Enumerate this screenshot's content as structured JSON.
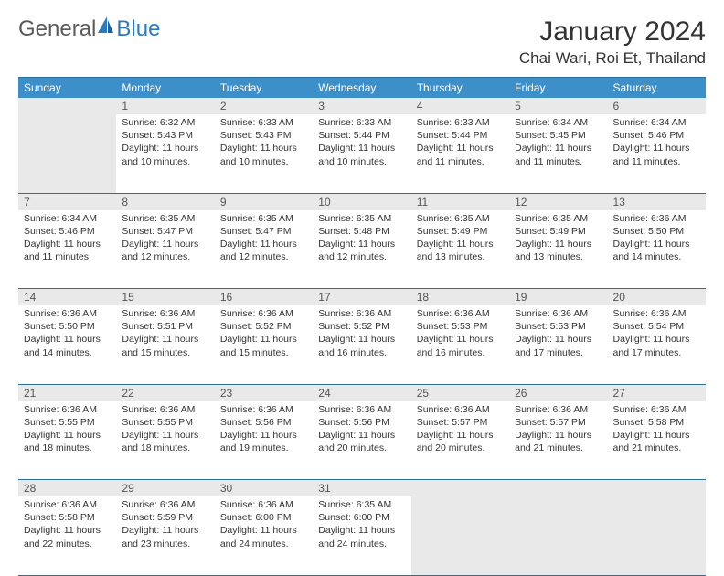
{
  "logo": {
    "text1": "General",
    "text2": "Blue"
  },
  "title": "January 2024",
  "location": "Chai Wari, Roi Et, Thailand",
  "colors": {
    "header_bg": "#3d8fc9",
    "header_border": "#2b6fa0",
    "daynum_bg": "#e9e9e9",
    "text": "#333333",
    "logo_gray": "#5a5a5a",
    "logo_blue": "#2b7bbf"
  },
  "weekdays": [
    "Sunday",
    "Monday",
    "Tuesday",
    "Wednesday",
    "Thursday",
    "Friday",
    "Saturday"
  ],
  "weeks": [
    [
      null,
      {
        "n": "1",
        "sr": "6:32 AM",
        "ss": "5:43 PM",
        "dl": "11 hours and 10 minutes."
      },
      {
        "n": "2",
        "sr": "6:33 AM",
        "ss": "5:43 PM",
        "dl": "11 hours and 10 minutes."
      },
      {
        "n": "3",
        "sr": "6:33 AM",
        "ss": "5:44 PM",
        "dl": "11 hours and 10 minutes."
      },
      {
        "n": "4",
        "sr": "6:33 AM",
        "ss": "5:44 PM",
        "dl": "11 hours and 11 minutes."
      },
      {
        "n": "5",
        "sr": "6:34 AM",
        "ss": "5:45 PM",
        "dl": "11 hours and 11 minutes."
      },
      {
        "n": "6",
        "sr": "6:34 AM",
        "ss": "5:46 PM",
        "dl": "11 hours and 11 minutes."
      }
    ],
    [
      {
        "n": "7",
        "sr": "6:34 AM",
        "ss": "5:46 PM",
        "dl": "11 hours and 11 minutes."
      },
      {
        "n": "8",
        "sr": "6:35 AM",
        "ss": "5:47 PM",
        "dl": "11 hours and 12 minutes."
      },
      {
        "n": "9",
        "sr": "6:35 AM",
        "ss": "5:47 PM",
        "dl": "11 hours and 12 minutes."
      },
      {
        "n": "10",
        "sr": "6:35 AM",
        "ss": "5:48 PM",
        "dl": "11 hours and 12 minutes."
      },
      {
        "n": "11",
        "sr": "6:35 AM",
        "ss": "5:49 PM",
        "dl": "11 hours and 13 minutes."
      },
      {
        "n": "12",
        "sr": "6:35 AM",
        "ss": "5:49 PM",
        "dl": "11 hours and 13 minutes."
      },
      {
        "n": "13",
        "sr": "6:36 AM",
        "ss": "5:50 PM",
        "dl": "11 hours and 14 minutes."
      }
    ],
    [
      {
        "n": "14",
        "sr": "6:36 AM",
        "ss": "5:50 PM",
        "dl": "11 hours and 14 minutes."
      },
      {
        "n": "15",
        "sr": "6:36 AM",
        "ss": "5:51 PM",
        "dl": "11 hours and 15 minutes."
      },
      {
        "n": "16",
        "sr": "6:36 AM",
        "ss": "5:52 PM",
        "dl": "11 hours and 15 minutes."
      },
      {
        "n": "17",
        "sr": "6:36 AM",
        "ss": "5:52 PM",
        "dl": "11 hours and 16 minutes."
      },
      {
        "n": "18",
        "sr": "6:36 AM",
        "ss": "5:53 PM",
        "dl": "11 hours and 16 minutes."
      },
      {
        "n": "19",
        "sr": "6:36 AM",
        "ss": "5:53 PM",
        "dl": "11 hours and 17 minutes."
      },
      {
        "n": "20",
        "sr": "6:36 AM",
        "ss": "5:54 PM",
        "dl": "11 hours and 17 minutes."
      }
    ],
    [
      {
        "n": "21",
        "sr": "6:36 AM",
        "ss": "5:55 PM",
        "dl": "11 hours and 18 minutes."
      },
      {
        "n": "22",
        "sr": "6:36 AM",
        "ss": "5:55 PM",
        "dl": "11 hours and 18 minutes."
      },
      {
        "n": "23",
        "sr": "6:36 AM",
        "ss": "5:56 PM",
        "dl": "11 hours and 19 minutes."
      },
      {
        "n": "24",
        "sr": "6:36 AM",
        "ss": "5:56 PM",
        "dl": "11 hours and 20 minutes."
      },
      {
        "n": "25",
        "sr": "6:36 AM",
        "ss": "5:57 PM",
        "dl": "11 hours and 20 minutes."
      },
      {
        "n": "26",
        "sr": "6:36 AM",
        "ss": "5:57 PM",
        "dl": "11 hours and 21 minutes."
      },
      {
        "n": "27",
        "sr": "6:36 AM",
        "ss": "5:58 PM",
        "dl": "11 hours and 21 minutes."
      }
    ],
    [
      {
        "n": "28",
        "sr": "6:36 AM",
        "ss": "5:58 PM",
        "dl": "11 hours and 22 minutes."
      },
      {
        "n": "29",
        "sr": "6:36 AM",
        "ss": "5:59 PM",
        "dl": "11 hours and 23 minutes."
      },
      {
        "n": "30",
        "sr": "6:36 AM",
        "ss": "6:00 PM",
        "dl": "11 hours and 24 minutes."
      },
      {
        "n": "31",
        "sr": "6:35 AM",
        "ss": "6:00 PM",
        "dl": "11 hours and 24 minutes."
      },
      null,
      null,
      null
    ]
  ],
  "labels": {
    "sunrise": "Sunrise:",
    "sunset": "Sunset:",
    "daylight": "Daylight:"
  }
}
